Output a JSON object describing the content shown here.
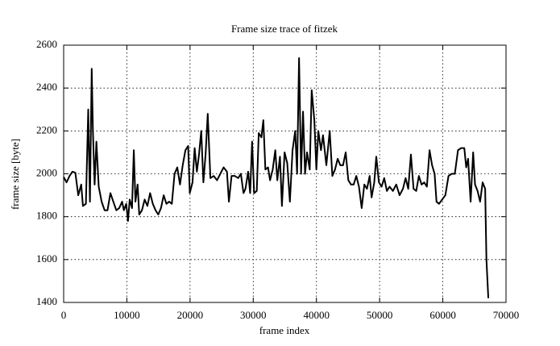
{
  "chart_data": {
    "type": "line",
    "title": "Frame size trace of fitzek",
    "x_label": "frame index",
    "y_label": "frame size [byte]",
    "x": [
      0,
      460,
      930,
      1390,
      1850,
      2310,
      2780,
      3050,
      3520,
      3890,
      4160,
      4440,
      4630,
      4900,
      5180,
      5550,
      6010,
      6480,
      6940,
      7400,
      7860,
      8330,
      8790,
      9250,
      9530,
      9900,
      10180,
      10450,
      10820,
      11100,
      11360,
      11700,
      11960,
      12390,
      12820,
      13250,
      13680,
      14110,
      14540,
      14970,
      15400,
      15830,
      16260,
      16690,
      17120,
      17550,
      17980,
      18410,
      18840,
      19270,
      19700,
      19960,
      20390,
      20730,
      21080,
      21420,
      21770,
      22110,
      22460,
      22800,
      23220,
      23740,
      24270,
      24790,
      25310,
      25840,
      26150,
      26570,
      27090,
      27620,
      28040,
      28460,
      28770,
      29190,
      29510,
      29820,
      30140,
      30560,
      30870,
      31290,
      31600,
      31920,
      32340,
      32660,
      33080,
      33490,
      33810,
      34230,
      34540,
      34960,
      35380,
      35800,
      36220,
      36640,
      36940,
      37250,
      37570,
      37880,
      38200,
      38510,
      38940,
      39250,
      39670,
      39990,
      40300,
      40720,
      41040,
      41570,
      42100,
      42520,
      42940,
      43360,
      43780,
      44210,
      44630,
      45050,
      45470,
      45890,
      46310,
      46730,
      47160,
      47580,
      48000,
      48420,
      48730,
      49150,
      49470,
      49890,
      50310,
      50730,
      51150,
      51580,
      52100,
      52630,
      53160,
      53690,
      54110,
      54530,
      54950,
      55370,
      55790,
      56210,
      56640,
      57060,
      57480,
      57900,
      58300,
      58700,
      59000,
      59400,
      59900,
      60400,
      60900,
      61400,
      61900,
      62400,
      62900,
      63400,
      63700,
      64000,
      64400,
      64800,
      65100,
      65500,
      65900,
      66300,
      66700,
      66900,
      67200
    ],
    "series": [
      {
        "name": "fitzek",
        "color": "#000000",
        "values": [
          1985,
          1960,
          1990,
          2010,
          2005,
          1900,
          1950,
          1850,
          1860,
          2300,
          1870,
          2490,
          2200,
          1950,
          2150,
          1940,
          1870,
          1830,
          1830,
          1910,
          1870,
          1830,
          1840,
          1870,
          1830,
          1860,
          1780,
          1880,
          1840,
          2110,
          1870,
          1950,
          1810,
          1830,
          1880,
          1850,
          1910,
          1860,
          1830,
          1810,
          1840,
          1900,
          1860,
          1870,
          1860,
          2000,
          2030,
          1950,
          2040,
          2110,
          2130,
          1910,
          1960,
          2120,
          2010,
          2090,
          2200,
          1960,
          2090,
          2280,
          1980,
          1990,
          1970,
          2000,
          2030,
          2010,
          1870,
          1990,
          1990,
          1980,
          2000,
          1910,
          1930,
          2010,
          1910,
          2150,
          1910,
          1920,
          2190,
          2170,
          2250,
          2020,
          2030,
          1970,
          2020,
          2110,
          1970,
          2080,
          1850,
          2100,
          2050,
          1870,
          2110,
          2200,
          2000,
          2540,
          2000,
          2290,
          2000,
          2100,
          2020,
          2390,
          2250,
          2020,
          2200,
          2110,
          2180,
          2040,
          2200,
          1990,
          2020,
          2070,
          2040,
          2040,
          2100,
          1970,
          1950,
          1950,
          1990,
          1940,
          1840,
          1950,
          1930,
          1990,
          1890,
          1960,
          2080,
          1960,
          1940,
          1980,
          1920,
          1940,
          1920,
          1950,
          1900,
          1930,
          1980,
          1930,
          2090,
          1930,
          1920,
          1990,
          1950,
          1960,
          1940,
          2110,
          2040,
          2000,
          1870,
          1860,
          1880,
          1900,
          1990,
          2000,
          2000,
          2110,
          2120,
          2120,
          2030,
          2070,
          1870,
          2100,
          1950,
          1920,
          1870,
          1960,
          1930,
          1600,
          1420
        ]
      }
    ],
    "xlim": [
      0,
      70000
    ],
    "xticks": [
      0,
      10000,
      20000,
      30000,
      40000,
      50000,
      60000,
      70000
    ],
    "ylim": [
      1400,
      2600
    ],
    "yticks": [
      1400,
      1600,
      1800,
      2000,
      2200,
      2400,
      2600
    ],
    "grid": true
  }
}
